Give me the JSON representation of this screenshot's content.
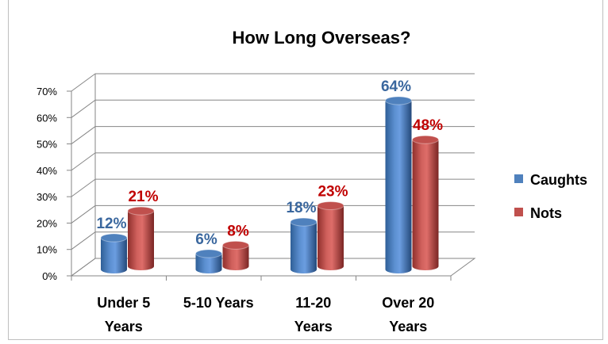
{
  "chart_data": {
    "type": "bar",
    "title": "How Long Overseas?",
    "categories": [
      [
        "Under 5",
        "Years"
      ],
      [
        "5-10 Years"
      ],
      [
        "11-20",
        "Years"
      ],
      [
        "Over 20",
        "Years"
      ]
    ],
    "series": [
      {
        "name": "Caughts",
        "values": [
          12,
          6,
          18,
          64
        ],
        "labels": [
          "12%",
          "6%",
          "18%",
          "64%"
        ],
        "color": "#4f81bd",
        "label_color": "#3a679e"
      },
      {
        "name": "Nots",
        "values": [
          21,
          8,
          23,
          48
        ],
        "labels": [
          "21%",
          "8%",
          "23%",
          "48%"
        ],
        "color": "#c0504d",
        "label_color": "#c00000"
      }
    ],
    "yticks": [
      "0%",
      "10%",
      "20%",
      "30%",
      "40%",
      "50%",
      "60%",
      "70%"
    ],
    "ylim": [
      0,
      70
    ],
    "grid": true,
    "legend_position": "right",
    "style": "3d-cylinder"
  }
}
